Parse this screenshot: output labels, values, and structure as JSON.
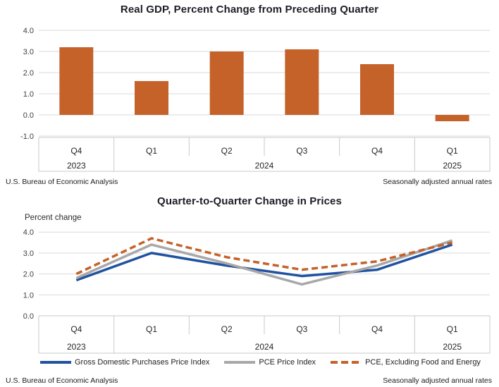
{
  "colors": {
    "accent_orange": "#C4622A",
    "line_blue": "#2052A0",
    "line_gray": "#A8A8A8",
    "gridline": "#D9D9D9",
    "axis_line": "#C9C9C9",
    "tick_text": "#3f3f3f",
    "label_text": "#262626",
    "title_text": "#1d1d26"
  },
  "chart_data": [
    {
      "type": "bar",
      "title": "Real GDP, Percent Change from Preceding Quarter",
      "categories": [
        "Q4",
        "Q1",
        "Q2",
        "Q3",
        "Q4",
        "Q1"
      ],
      "year_groups": [
        {
          "label": "2023",
          "span": 1
        },
        {
          "label": "2024",
          "span": 4
        },
        {
          "label": "2025",
          "span": 1
        }
      ],
      "values": [
        3.2,
        1.6,
        3.0,
        3.1,
        2.4,
        -0.3
      ],
      "ylabel": "",
      "ylim": [
        -1.0,
        4.0
      ],
      "ytick_step": 1.0,
      "grid": "horizontal",
      "source_left": "U.S. Bureau of Economic Analysis",
      "source_right": "Seasonally adjusted annual rates"
    },
    {
      "type": "line",
      "title": "Quarter-to-Quarter Change in Prices",
      "ylabel": "Percent change",
      "categories": [
        "Q4",
        "Q1",
        "Q2",
        "Q3",
        "Q4",
        "Q1"
      ],
      "year_groups": [
        {
          "label": "2023",
          "span": 1
        },
        {
          "label": "2024",
          "span": 4
        },
        {
          "label": "2025",
          "span": 1
        }
      ],
      "series": [
        {
          "name": "Gross Domestic Purchases Price Index",
          "color_key": "line_blue",
          "style": "solid",
          "values": [
            1.7,
            3.0,
            2.4,
            1.9,
            2.2,
            3.4
          ]
        },
        {
          "name": "PCE Price Index",
          "color_key": "line_gray",
          "style": "solid",
          "values": [
            1.8,
            3.4,
            2.5,
            1.5,
            2.4,
            3.6
          ]
        },
        {
          "name": "PCE, Excluding Food and Energy",
          "color_key": "accent_orange",
          "style": "dashed",
          "values": [
            2.0,
            3.7,
            2.8,
            2.2,
            2.6,
            3.5
          ]
        }
      ],
      "ylim": [
        0.0,
        4.0
      ],
      "ytick_step": 1.0,
      "grid": "horizontal",
      "legend_position": "bottom",
      "source_left": "U.S. Bureau of Economic Analysis",
      "source_right": "Seasonally adjusted annual rates"
    }
  ]
}
